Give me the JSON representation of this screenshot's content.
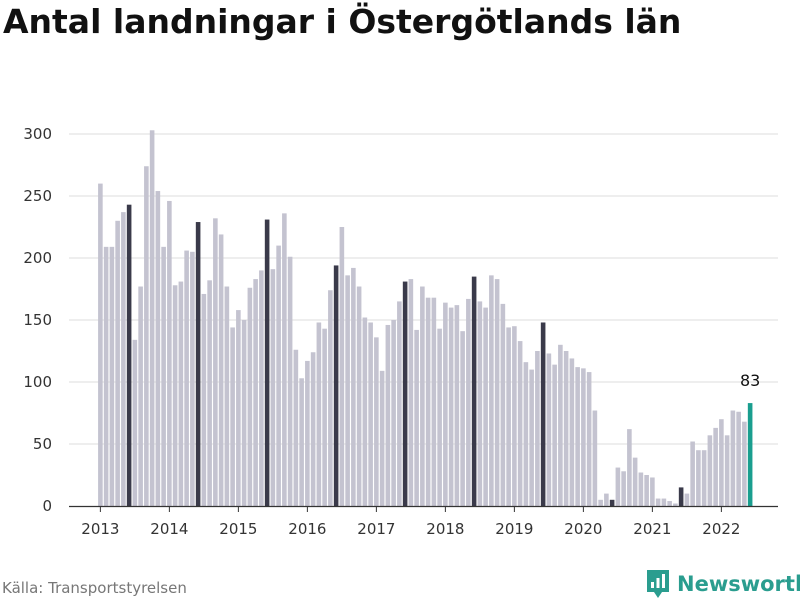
{
  "title": "Antal landningar i Östergötlands län",
  "source": "Källa: Transportstyrelsen",
  "brand": {
    "name": "Newsworthy",
    "icon": "newsworthy-logo-icon",
    "color": "#2a9d8f"
  },
  "chart_data": {
    "type": "bar",
    "title": "Antal landningar i Östergötlands län",
    "xlabel": "",
    "ylabel": "",
    "ylim": [
      0,
      320
    ],
    "y_ticks": [
      0,
      50,
      100,
      150,
      200,
      250,
      300
    ],
    "x_ticks": [
      "2013",
      "2014",
      "2015",
      "2016",
      "2017",
      "2018",
      "2019",
      "2020",
      "2021",
      "2022"
    ],
    "grid": "horizontal",
    "colors": {
      "default": "#c4c3d0",
      "highlight": "#3a3a4a",
      "latest": "#1a9e8f"
    },
    "start": "2013-01",
    "annotation": {
      "label": "83",
      "category": "2022-06"
    },
    "categories": [
      "2013-01",
      "2013-02",
      "2013-03",
      "2013-04",
      "2013-05",
      "2013-06",
      "2013-07",
      "2013-08",
      "2013-09",
      "2013-10",
      "2013-11",
      "2013-12",
      "2014-01",
      "2014-02",
      "2014-03",
      "2014-04",
      "2014-05",
      "2014-06",
      "2014-07",
      "2014-08",
      "2014-09",
      "2014-10",
      "2014-11",
      "2014-12",
      "2015-01",
      "2015-02",
      "2015-03",
      "2015-04",
      "2015-05",
      "2015-06",
      "2015-07",
      "2015-08",
      "2015-09",
      "2015-10",
      "2015-11",
      "2015-12",
      "2016-01",
      "2016-02",
      "2016-03",
      "2016-04",
      "2016-05",
      "2016-06",
      "2016-07",
      "2016-08",
      "2016-09",
      "2016-10",
      "2016-11",
      "2016-12",
      "2017-01",
      "2017-02",
      "2017-03",
      "2017-04",
      "2017-05",
      "2017-06",
      "2017-07",
      "2017-08",
      "2017-09",
      "2017-10",
      "2017-11",
      "2017-12",
      "2018-01",
      "2018-02",
      "2018-03",
      "2018-04",
      "2018-05",
      "2018-06",
      "2018-07",
      "2018-08",
      "2018-09",
      "2018-10",
      "2018-11",
      "2018-12",
      "2019-01",
      "2019-02",
      "2019-03",
      "2019-04",
      "2019-05",
      "2019-06",
      "2019-07",
      "2019-08",
      "2019-09",
      "2019-10",
      "2019-11",
      "2019-12",
      "2020-01",
      "2020-02",
      "2020-03",
      "2020-04",
      "2020-05",
      "2020-06",
      "2020-07",
      "2020-08",
      "2020-09",
      "2020-10",
      "2020-11",
      "2020-12",
      "2021-01",
      "2021-02",
      "2021-03",
      "2021-04",
      "2021-05",
      "2021-06",
      "2021-07",
      "2021-08",
      "2021-09",
      "2021-10",
      "2021-11",
      "2021-12",
      "2022-01",
      "2022-02",
      "2022-03",
      "2022-04",
      "2022-05",
      "2022-06"
    ],
    "values": [
      260,
      209,
      209,
      230,
      237,
      243,
      134,
      177,
      274,
      303,
      254,
      209,
      246,
      178,
      181,
      206,
      205,
      229,
      171,
      182,
      232,
      219,
      177,
      144,
      158,
      150,
      176,
      183,
      190,
      231,
      191,
      210,
      236,
      201,
      126,
      103,
      117,
      124,
      148,
      143,
      174,
      194,
      225,
      186,
      192,
      177,
      152,
      148,
      136,
      109,
      146,
      150,
      165,
      181,
      183,
      142,
      177,
      168,
      168,
      143,
      164,
      160,
      162,
      141,
      167,
      185,
      165,
      160,
      186,
      183,
      163,
      144,
      145,
      133,
      116,
      110,
      125,
      148,
      123,
      114,
      130,
      125,
      119,
      112,
      111,
      108,
      77,
      5,
      10,
      5,
      31,
      28,
      62,
      39,
      27,
      25,
      23,
      6,
      6,
      4,
      2,
      15,
      10,
      52,
      45,
      45,
      57,
      63,
      70,
      57,
      77,
      76,
      68,
      83
    ]
  }
}
